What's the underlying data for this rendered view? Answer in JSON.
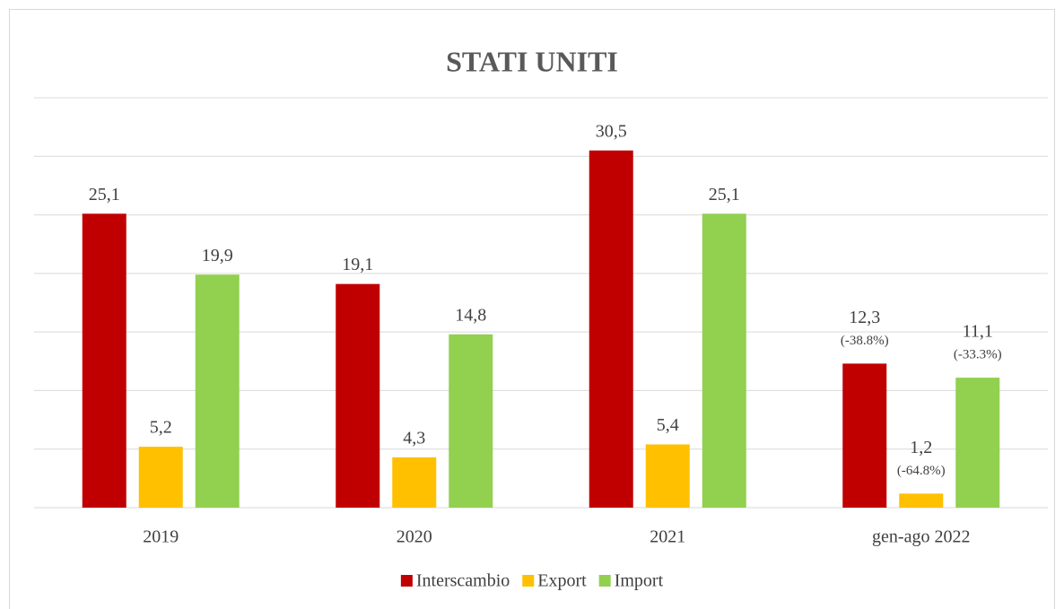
{
  "chart_data": {
    "type": "bar",
    "title": "STATI UNITI",
    "categories": [
      "2019",
      "2020",
      "2021",
      "gen-ago 2022"
    ],
    "series": [
      {
        "name": "Interscambio",
        "color": "#c00000",
        "values": [
          25.1,
          19.1,
          30.5,
          12.3
        ],
        "value_labels": [
          "25,1",
          "19,1",
          "30,5",
          "12,3"
        ],
        "notes": [
          null,
          null,
          null,
          "(-38.8%)"
        ]
      },
      {
        "name": "Export",
        "color": "#ffc000",
        "values": [
          5.2,
          4.3,
          5.4,
          1.2
        ],
        "value_labels": [
          "5,2",
          "4,3",
          "5,4",
          "1,2"
        ],
        "notes": [
          null,
          null,
          null,
          "(-64.8%)"
        ]
      },
      {
        "name": "Import",
        "color": "#92d050",
        "values": [
          19.9,
          14.8,
          25.1,
          11.1
        ],
        "value_labels": [
          "19,9",
          "14,8",
          "25,1",
          "11,1"
        ],
        "notes": [
          null,
          null,
          null,
          "(-33.3%)"
        ]
      }
    ],
    "ylim": [
      0,
      35
    ],
    "yticks": [
      0,
      5,
      10,
      15,
      20,
      25,
      30,
      35
    ],
    "grid": true,
    "legend": "bottom"
  }
}
